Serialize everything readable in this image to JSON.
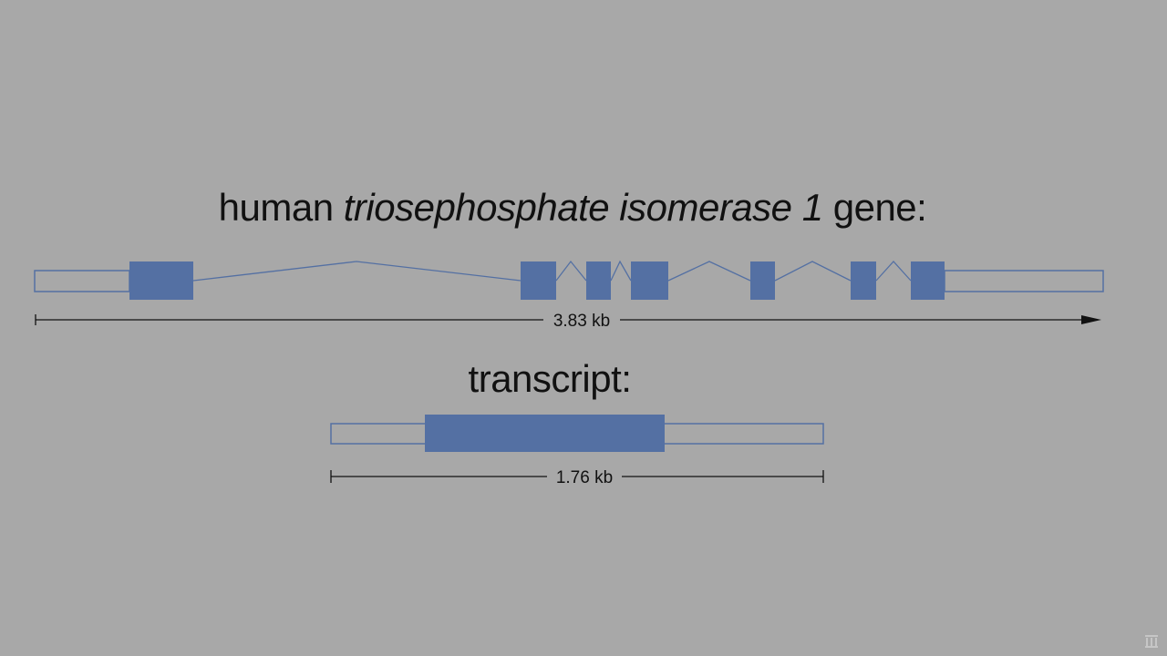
{
  "gene": {
    "title_prefix": "human ",
    "title_italic": "triosephosphate isomerase 1",
    "title_suffix": " gene:",
    "length_label": "3.83 kb",
    "exon_color": "#5470a3",
    "utr_color": "#5470a3"
  },
  "transcript": {
    "title": "transcript:",
    "length_label": "1.76 kb"
  },
  "watermark": {
    "icon": "logo-icon"
  }
}
